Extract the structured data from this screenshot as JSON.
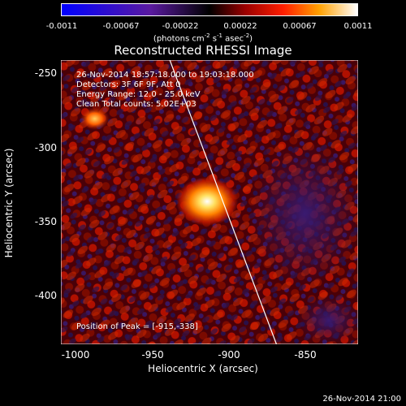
{
  "colorbar": {
    "ticks": [
      "-0.0011",
      "-0.00067",
      "-0.00022",
      "0.00022",
      "0.00067",
      "0.0011"
    ],
    "unit_text": "(photons cm",
    "unit_exp1": "-2",
    "unit_mid1": " s",
    "unit_exp2": "-1",
    "unit_mid2": " asec",
    "unit_exp3": "-2",
    "unit_end": ")"
  },
  "title": "Reconstructed RHESSI Image",
  "info": {
    "line1": "26-Nov-2014 18:57:18.000 to 19:03:18.000",
    "line2": "Detectors: 3F 6F 9F, Att 0",
    "line3": "Energy Range: 12.0 - 25.0 keV",
    "line4": "Clean     Total counts: 5.02E+03"
  },
  "peak_label": "Position of Peak = [-915,-338]",
  "axes": {
    "xlabel": "Heliocentric X (arcsec)",
    "ylabel": "Heliocentric Y (arcsec)",
    "xticks": [
      "-1000",
      "-950",
      "-900",
      "-850"
    ],
    "yticks": [
      "-250",
      "-300",
      "-350",
      "-400"
    ],
    "xlim": [
      -1010,
      -817
    ],
    "ylim": [
      -433,
      -244
    ]
  },
  "image": {
    "peak": {
      "x": -915,
      "y": -338
    },
    "secondary_source": {
      "x": -988,
      "y": -283
    },
    "limb_line": [
      [
        -940,
        -242
      ],
      [
        -870,
        -433
      ]
    ]
  },
  "footer_date": "26-Nov-2014 21:00"
}
